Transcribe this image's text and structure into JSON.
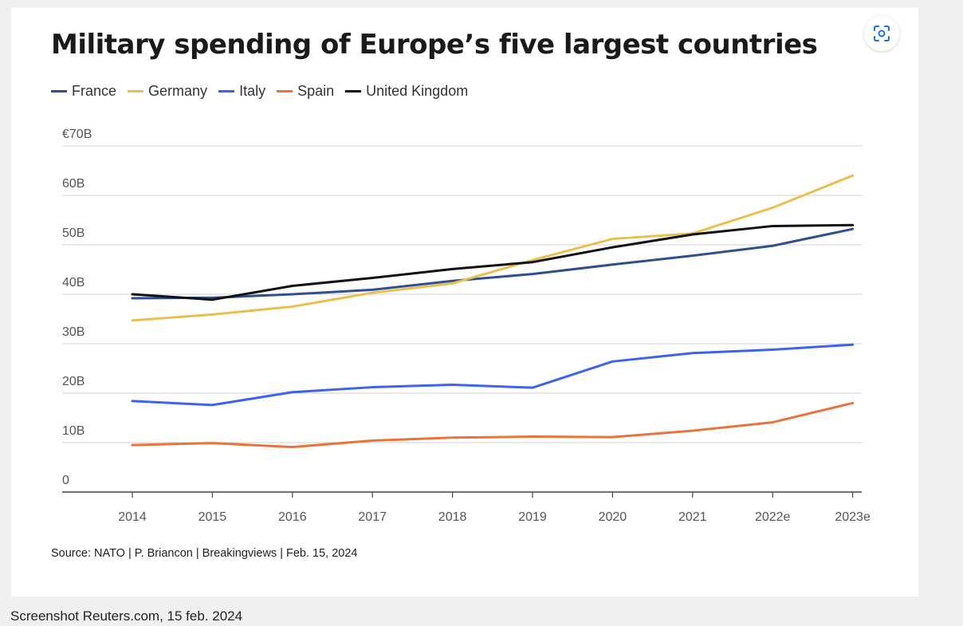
{
  "caption": "Screenshot Reuters.com, 15 feb. 2024",
  "lens_button": {
    "icon": "lens-icon"
  },
  "chart_data": {
    "type": "line",
    "title": "Military spending of Europe’s five largest countries",
    "source": "Source: NATO | P. Briancon | Breakingviews | Feb. 15, 2024",
    "categories": [
      "2014",
      "2015",
      "2016",
      "2017",
      "2018",
      "2019",
      "2020",
      "2021",
      "2022e",
      "2023e"
    ],
    "y_ticks": [
      {
        "value": 0,
        "label": "0"
      },
      {
        "value": 10,
        "label": "10B"
      },
      {
        "value": 20,
        "label": "20B"
      },
      {
        "value": 30,
        "label": "30B"
      },
      {
        "value": 40,
        "label": "40B"
      },
      {
        "value": 50,
        "label": "50B"
      },
      {
        "value": 60,
        "label": "60B"
      },
      {
        "value": 70,
        "label": "€70B"
      }
    ],
    "ylim": [
      0,
      70
    ],
    "grid": true,
    "legend_position": "top-left",
    "series": [
      {
        "name": "France",
        "color": "#2f4f8f",
        "values": [
          39.2,
          39.3,
          40.0,
          40.9,
          42.7,
          44.1,
          46.0,
          47.8,
          49.8,
          53.2
        ]
      },
      {
        "name": "Germany",
        "color": "#e8c04e",
        "values": [
          34.7,
          35.9,
          37.5,
          40.3,
          42.2,
          46.9,
          51.2,
          52.3,
          57.5,
          64.0
        ]
      },
      {
        "name": "Italy",
        "color": "#3d63e8",
        "values": [
          18.4,
          17.6,
          20.2,
          21.2,
          21.7,
          21.1,
          26.4,
          28.1,
          28.8,
          29.8
        ]
      },
      {
        "name": "Spain",
        "color": "#e8743b",
        "values": [
          9.5,
          9.9,
          9.1,
          10.4,
          11.0,
          11.2,
          11.1,
          12.4,
          14.1,
          18.0
        ]
      },
      {
        "name": "United Kingdom",
        "color": "#111111",
        "values": [
          40.0,
          38.9,
          41.7,
          43.3,
          45.1,
          46.5,
          49.5,
          52.1,
          53.8,
          54.0
        ]
      }
    ]
  }
}
